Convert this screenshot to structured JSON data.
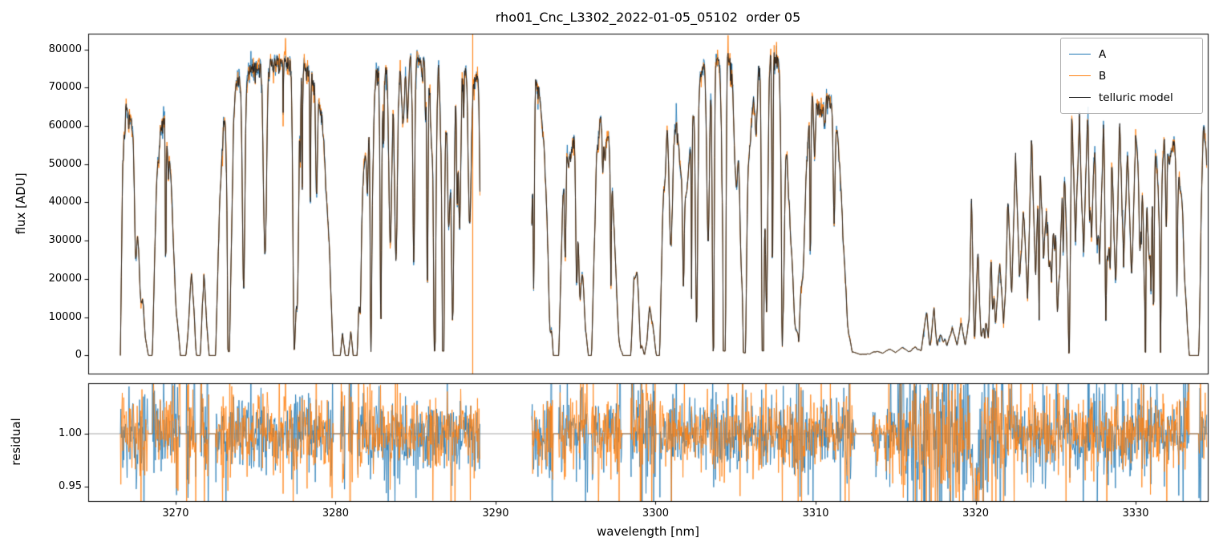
{
  "chart_data": {
    "type": "line",
    "title": "rho01_Cnc_L3302_2022-01-05_05102  order 05",
    "xlabel": "wavelength [nm]",
    "xlim": [
      3264.54,
      3334.51
    ],
    "xticks": [
      3270,
      3280,
      3290,
      3300,
      3310,
      3320,
      3330
    ],
    "xtick_labels": [
      "3270",
      "3280",
      "3290",
      "3300",
      "3310",
      "3320",
      "3330"
    ],
    "legend": [
      {
        "label": "A",
        "color": "#1f77b4"
      },
      {
        "label": "B",
        "color": "#ff7f0e"
      },
      {
        "label": "telluric model",
        "color": "#1c1c1c"
      }
    ],
    "legend_position": "upper right",
    "grid": false,
    "panels": [
      {
        "name": "flux",
        "ylabel": "flux [ADU]",
        "ylim": [
          -4730,
          84100
        ],
        "yticks": [
          0,
          10000,
          20000,
          30000,
          40000,
          50000,
          60000,
          70000,
          80000
        ],
        "ytick_labels": [
          "0",
          "10000",
          "20000",
          "30000",
          "40000",
          "50000",
          "60000",
          "70000",
          "80000"
        ]
      },
      {
        "name": "residual",
        "ylabel": "residual",
        "ylim": [
          0.9364,
          1.0477
        ],
        "yticks": [
          0.95,
          1.0
        ],
        "ytick_labels": [
          "0.95",
          "1.00"
        ],
        "hline": 1.0,
        "hline_color": "#9a9a9a"
      }
    ],
    "data_range": [
      3266.55,
      3334.45
    ],
    "gaps": [
      [
        3289.05,
        3292.25
      ]
    ],
    "artifact_spike_nm": 3288.57,
    "model_envelope_adu": [
      [
        3266.55,
        0
      ],
      [
        3266.7,
        52000
      ],
      [
        3266.9,
        66000
      ],
      [
        3267.2,
        63000
      ],
      [
        3267.5,
        54000
      ],
      [
        3267.8,
        30000
      ],
      [
        3268.1,
        5000
      ],
      [
        3268.3,
        0
      ],
      [
        3268.55,
        0
      ],
      [
        3268.8,
        45000
      ],
      [
        3269.05,
        62000
      ],
      [
        3269.35,
        63000
      ],
      [
        3269.7,
        48000
      ],
      [
        3270.0,
        15000
      ],
      [
        3270.3,
        0
      ],
      [
        3270.65,
        0
      ],
      [
        3270.85,
        13000
      ],
      [
        3271.0,
        25000
      ],
      [
        3271.15,
        13000
      ],
      [
        3271.3,
        0
      ],
      [
        3271.55,
        0
      ],
      [
        3271.75,
        25000
      ],
      [
        3271.95,
        8000
      ],
      [
        3272.1,
        0
      ],
      [
        3272.5,
        0
      ],
      [
        3272.75,
        40000
      ],
      [
        3273.0,
        62000
      ],
      [
        3273.4,
        70000
      ],
      [
        3274.0,
        74000
      ],
      [
        3275.0,
        77000
      ],
      [
        3276.0,
        78500
      ],
      [
        3277.0,
        78000
      ],
      [
        3278.0,
        77000
      ],
      [
        3278.7,
        73000
      ],
      [
        3279.2,
        62000
      ],
      [
        3279.6,
        30000
      ],
      [
        3279.85,
        0
      ],
      [
        3280.3,
        0
      ],
      [
        3280.45,
        7000
      ],
      [
        3280.6,
        0
      ],
      [
        3280.8,
        0
      ],
      [
        3280.95,
        7000
      ],
      [
        3281.1,
        0
      ],
      [
        3281.35,
        0
      ],
      [
        3281.7,
        45000
      ],
      [
        3282.0,
        65000
      ],
      [
        3282.4,
        74000
      ],
      [
        3283.0,
        77500
      ],
      [
        3284.0,
        79000
      ],
      [
        3285.0,
        79500
      ],
      [
        3286.0,
        79000
      ],
      [
        3287.0,
        78500
      ],
      [
        3288.0,
        78000
      ],
      [
        3288.6,
        76000
      ],
      [
        3289.05,
        72000
      ],
      [
        3292.25,
        48000
      ],
      [
        3292.5,
        74000
      ],
      [
        3292.75,
        70000
      ],
      [
        3293.0,
        58000
      ],
      [
        3293.35,
        25000
      ],
      [
        3293.6,
        0
      ],
      [
        3293.95,
        0
      ],
      [
        3294.2,
        42000
      ],
      [
        3294.45,
        61000
      ],
      [
        3294.7,
        54000
      ],
      [
        3294.95,
        59000
      ],
      [
        3295.25,
        42000
      ],
      [
        3295.6,
        8000
      ],
      [
        3295.8,
        0
      ],
      [
        3296.0,
        0
      ],
      [
        3296.3,
        52000
      ],
      [
        3296.55,
        64000
      ],
      [
        3296.8,
        54000
      ],
      [
        3297.05,
        59000
      ],
      [
        3297.35,
        40000
      ],
      [
        3297.7,
        6000
      ],
      [
        3297.95,
        0
      ],
      [
        3298.45,
        0
      ],
      [
        3298.65,
        21000
      ],
      [
        3298.85,
        22000
      ],
      [
        3299.1,
        4000
      ],
      [
        3299.3,
        0
      ],
      [
        3299.45,
        4000
      ],
      [
        3299.65,
        22000
      ],
      [
        3299.85,
        8000
      ],
      [
        3300.05,
        0
      ],
      [
        3300.25,
        0
      ],
      [
        3300.5,
        52000
      ],
      [
        3300.75,
        65000
      ],
      [
        3301.0,
        58000
      ],
      [
        3301.3,
        62000
      ],
      [
        3301.6,
        48000
      ],
      [
        3301.9,
        42000
      ],
      [
        3302.2,
        56000
      ],
      [
        3302.5,
        71000
      ],
      [
        3303.0,
        77000
      ],
      [
        3303.5,
        80000
      ],
      [
        3304.0,
        79000
      ],
      [
        3304.5,
        80000
      ],
      [
        3305.0,
        74000
      ],
      [
        3305.3,
        58000
      ],
      [
        3305.6,
        46000
      ],
      [
        3305.9,
        56000
      ],
      [
        3306.2,
        74000
      ],
      [
        3306.6,
        81000
      ],
      [
        3307.0,
        82000
      ],
      [
        3307.4,
        81000
      ],
      [
        3307.8,
        77000
      ],
      [
        3308.1,
        62000
      ],
      [
        3308.4,
        40000
      ],
      [
        3308.7,
        15000
      ],
      [
        3308.95,
        6000
      ],
      [
        3309.3,
        40000
      ],
      [
        3309.65,
        67000
      ],
      [
        3310.0,
        70000
      ],
      [
        3310.3,
        64000
      ],
      [
        3310.6,
        70000
      ],
      [
        3311.0,
        66000
      ],
      [
        3311.35,
        60000
      ],
      [
        3311.7,
        38000
      ],
      [
        3312.0,
        8000
      ],
      [
        3312.3,
        1000
      ],
      [
        3312.8,
        300
      ],
      [
        3313.3,
        500
      ],
      [
        3313.8,
        1200
      ],
      [
        3314.2,
        600
      ],
      [
        3314.6,
        1800
      ],
      [
        3315.0,
        800
      ],
      [
        3315.4,
        2200
      ],
      [
        3315.8,
        1200
      ],
      [
        3316.2,
        2800
      ],
      [
        3316.6,
        1500
      ],
      [
        3316.95,
        12500
      ],
      [
        3317.15,
        3500
      ],
      [
        3317.4,
        13000
      ],
      [
        3317.6,
        3000
      ],
      [
        3317.9,
        8500
      ],
      [
        3318.2,
        2500
      ],
      [
        3318.55,
        7500
      ],
      [
        3318.85,
        3000
      ],
      [
        3319.1,
        9000
      ],
      [
        3319.35,
        3000
      ],
      [
        3319.6,
        10000
      ],
      [
        3319.75,
        45000
      ],
      [
        3319.95,
        8000
      ],
      [
        3320.15,
        30000
      ],
      [
        3320.35,
        6000
      ],
      [
        3320.6,
        12000
      ],
      [
        3320.8,
        5000
      ],
      [
        3321.0,
        34000
      ],
      [
        3321.25,
        8000
      ],
      [
        3321.5,
        25000
      ],
      [
        3321.75,
        10000
      ],
      [
        3322.0,
        47000
      ],
      [
        3322.25,
        15000
      ],
      [
        3322.5,
        55000
      ],
      [
        3322.75,
        20000
      ],
      [
        3323.0,
        40000
      ],
      [
        3323.25,
        15000
      ],
      [
        3323.5,
        58000
      ],
      [
        3323.75,
        20000
      ],
      [
        3324.0,
        62000
      ],
      [
        3324.25,
        25000
      ],
      [
        3324.5,
        50000
      ],
      [
        3324.75,
        20000
      ],
      [
        3325.0,
        65000
      ],
      [
        3325.25,
        22000
      ],
      [
        3325.5,
        55000
      ],
      [
        3325.75,
        25000
      ],
      [
        3326.0,
        70000
      ],
      [
        3326.25,
        30000
      ],
      [
        3326.5,
        75000
      ],
      [
        3326.75,
        28000
      ],
      [
        3327.0,
        65000
      ],
      [
        3327.25,
        30000
      ],
      [
        3327.5,
        70000
      ],
      [
        3327.75,
        25000
      ],
      [
        3328.0,
        62000
      ],
      [
        3328.25,
        28000
      ],
      [
        3328.5,
        58000
      ],
      [
        3328.75,
        22000
      ],
      [
        3329.0,
        64000
      ],
      [
        3329.25,
        25000
      ],
      [
        3329.5,
        55000
      ],
      [
        3329.75,
        20000
      ],
      [
        3330.0,
        58000
      ],
      [
        3330.3,
        45000
      ],
      [
        3330.6,
        58000
      ],
      [
        3330.9,
        48000
      ],
      [
        3331.2,
        60000
      ],
      [
        3331.5,
        50000
      ],
      [
        3331.8,
        58000
      ],
      [
        3332.1,
        52000
      ],
      [
        3332.4,
        57000
      ],
      [
        3332.7,
        48000
      ],
      [
        3332.95,
        40000
      ],
      [
        3333.15,
        15000
      ],
      [
        3333.35,
        0
      ],
      [
        3333.95,
        0
      ],
      [
        3334.1,
        40000
      ],
      [
        3334.25,
        62000
      ],
      [
        3334.4,
        55000
      ],
      [
        3334.45,
        50000
      ]
    ],
    "residual_features": [
      {
        "x": 3317.25,
        "amp": 0.037,
        "w": 0.07
      },
      {
        "x": 3317.62,
        "amp": 0.022,
        "w": 0.05
      },
      {
        "x": 3319.95,
        "amp": -0.075,
        "w": 0.22
      },
      {
        "x": 3320.45,
        "amp": -0.028,
        "w": 0.1
      }
    ],
    "noise": {
      "seed": 20220105,
      "n_lines": 270,
      "line_depth_max": 0.97,
      "line_width_nm": [
        0.025,
        0.14
      ],
      "residual_sigma_base": 0.016,
      "residual_sigma_lowflux": 0.034
    }
  }
}
